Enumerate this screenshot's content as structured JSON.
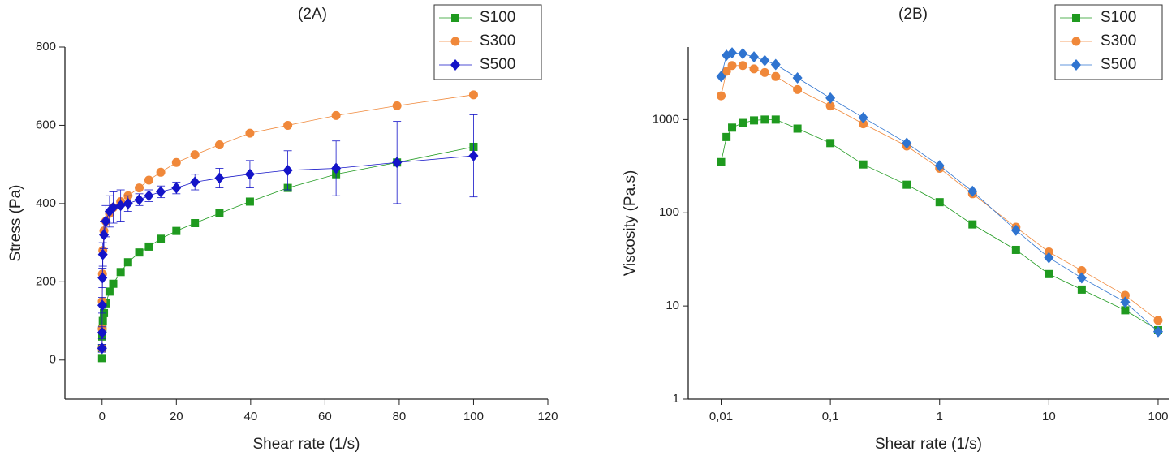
{
  "chart_data": [
    {
      "type": "scatter",
      "title": "(2A)",
      "xlabel": "Shear rate (1/s)",
      "ylabel": "Stress (Pa)",
      "x": [
        0.01,
        0.02,
        0.05,
        0.1,
        0.2,
        0.5,
        1,
        2,
        3,
        5,
        7,
        10,
        12.6,
        15.8,
        20,
        25,
        31.6,
        39.8,
        50,
        63,
        79.4,
        100
      ],
      "series": [
        {
          "name": "S100",
          "color": "#1f9a1f",
          "marker": "square",
          "values": [
            5,
            30,
            60,
            80,
            100,
            120,
            145,
            175,
            195,
            225,
            250,
            275,
            290,
            310,
            330,
            350,
            375,
            405,
            440,
            475,
            505,
            545
          ]
        },
        {
          "name": "S300",
          "color": "#f0883a",
          "marker": "circle",
          "values": [
            30,
            80,
            150,
            220,
            280,
            330,
            355,
            375,
            390,
            405,
            420,
            440,
            460,
            480,
            505,
            525,
            550,
            580,
            600,
            625,
            650,
            678
          ]
        },
        {
          "name": "S500",
          "color": "#1414c8",
          "marker": "diamond",
          "values": [
            30,
            70,
            140,
            210,
            270,
            320,
            355,
            380,
            390,
            395,
            400,
            410,
            420,
            430,
            440,
            455,
            465,
            475,
            485,
            490,
            505,
            522
          ],
          "errors": [
            10,
            15,
            20,
            25,
            30,
            35,
            40,
            40,
            40,
            40,
            20,
            15,
            15,
            15,
            15,
            20,
            25,
            35,
            50,
            70,
            105,
            105
          ]
        }
      ],
      "xlim": [
        -10,
        120
      ],
      "xticks": [
        0,
        20,
        40,
        60,
        80,
        100,
        120
      ],
      "ylim": [
        -100,
        800
      ],
      "yticks": [
        0,
        200,
        400,
        600,
        800
      ],
      "legend": "upper right"
    },
    {
      "type": "scatter",
      "title": "(2B)",
      "xlabel": "Shear rate (1/s)",
      "ylabel": "Viscosity (Pa.s)",
      "xscale": "log",
      "yscale": "log",
      "x": [
        0.01,
        0.0112,
        0.0126,
        0.0158,
        0.02,
        0.0251,
        0.0316,
        0.05,
        0.1,
        0.2,
        0.5,
        1,
        2,
        5,
        10,
        20,
        50,
        100
      ],
      "series": [
        {
          "name": "S100",
          "color": "#1f9a1f",
          "marker": "square",
          "values": [
            350,
            650,
            820,
            920,
            980,
            1000,
            1000,
            800,
            560,
            330,
            200,
            130,
            75,
            40,
            22,
            15,
            9,
            5.5
          ]
        },
        {
          "name": "S300",
          "color": "#f0883a",
          "marker": "circle",
          "values": [
            1800,
            3300,
            3800,
            3800,
            3500,
            3200,
            2900,
            2100,
            1400,
            900,
            520,
            300,
            160,
            70,
            38,
            24,
            13,
            7
          ]
        },
        {
          "name": "S500",
          "color": "#2f74d0",
          "marker": "diamond",
          "values": [
            2900,
            4900,
            5200,
            5100,
            4700,
            4300,
            3900,
            2800,
            1700,
            1050,
            560,
            320,
            170,
            65,
            33,
            20,
            11,
            5.3
          ]
        }
      ],
      "xlim": [
        0.005,
        125
      ],
      "xticks": [
        {
          "value": 0.01,
          "label": "0,01"
        },
        {
          "value": 0.1,
          "label": "0,1"
        },
        1,
        10,
        100
      ],
      "ylim": [
        1,
        6000
      ],
      "yticks": [
        1,
        10,
        100,
        1000
      ],
      "legend": "upper right"
    }
  ]
}
